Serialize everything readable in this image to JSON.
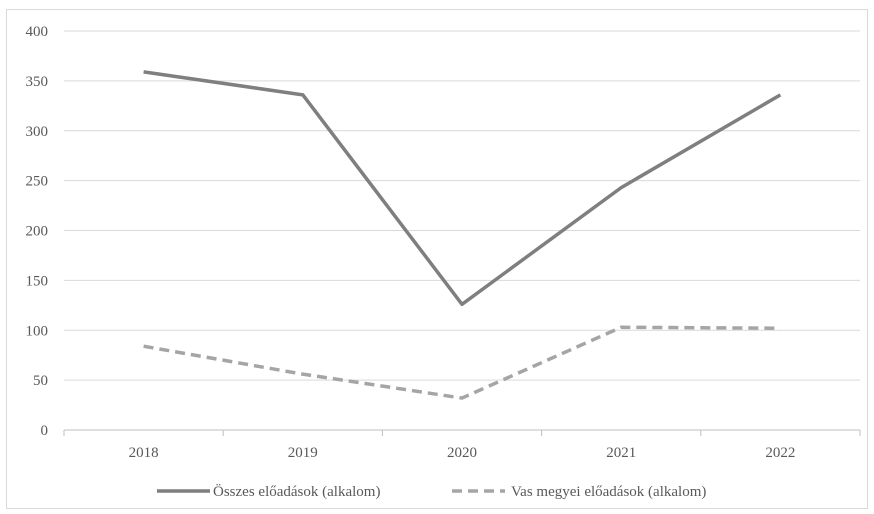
{
  "chart_data": {
    "type": "line",
    "categories": [
      "2018",
      "2019",
      "2020",
      "2021",
      "2022"
    ],
    "series": [
      {
        "name": "Összes előadások (alkalom)",
        "values": [
          359,
          336,
          126,
          243,
          336
        ],
        "color": "#7f7f7f",
        "dash": "solid"
      },
      {
        "name": "Vas megyei előadások (alkalom)",
        "values": [
          84,
          56,
          32,
          103,
          102
        ],
        "color": "#a5a5a5",
        "dash": "dashed"
      }
    ],
    "yticks": [
      "0",
      "50",
      "100",
      "150",
      "200",
      "250",
      "300",
      "350",
      "400"
    ],
    "ylim": [
      0,
      400
    ],
    "grid": true,
    "legend_position": "bottom",
    "title": "",
    "xlabel": "",
    "ylabel": ""
  }
}
